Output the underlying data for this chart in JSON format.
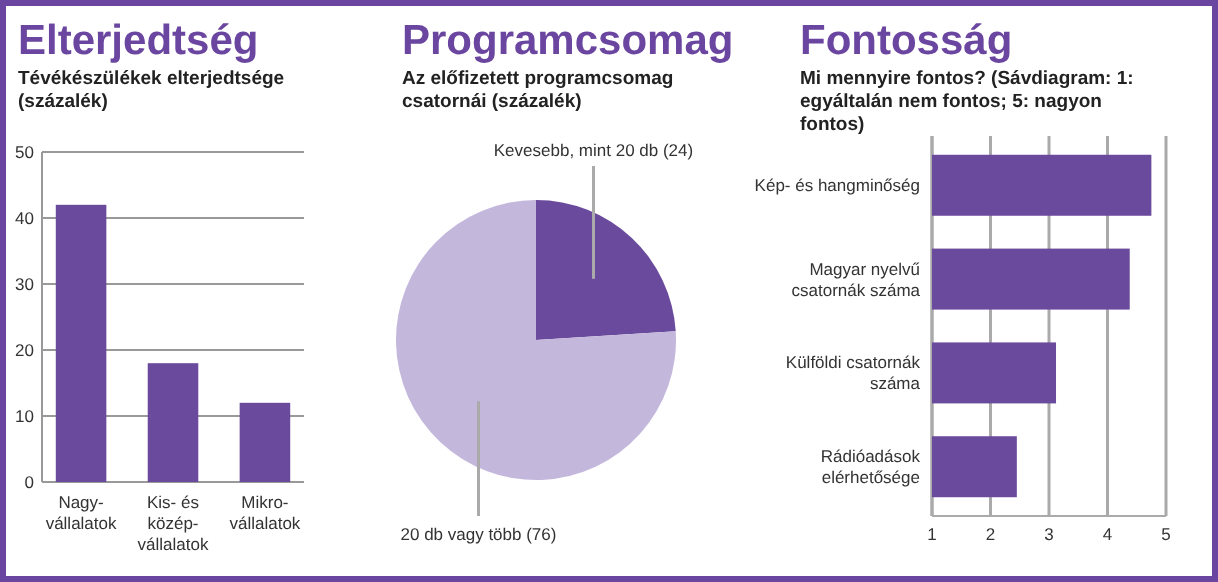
{
  "chart_data": [
    {
      "type": "bar",
      "title": "Elterjedtség",
      "subtitle": "Tévékészülékek elterjedtsége (százalék)",
      "categories": [
        "Nagy-\nvállalatok",
        "Kis- és\nközép-\nvállalatok",
        "Mikro-\nvállalatok"
      ],
      "values": [
        42,
        18,
        12
      ],
      "color": "#6a4a9c",
      "ylim": [
        0,
        50
      ],
      "yticks": [
        0,
        10,
        20,
        30,
        40,
        50
      ],
      "grid": "y"
    },
    {
      "type": "pie",
      "title": "Programcsomag",
      "subtitle": "Az előfizetett programcsomag csatornái (százalék)",
      "categories": [
        "Kevesebb, mint 20 db (24)",
        "20 db vagy több (76)"
      ],
      "values": [
        24,
        76
      ],
      "colors": [
        "#6a4a9c",
        "#c3b8dc"
      ]
    },
    {
      "type": "bar",
      "orientation": "horizontal",
      "title": "Fontosság",
      "subtitle": "Mi mennyire fontos? (Sávdiagram: 1: egyáltalán nem fontos; 5: nagyon fontos)",
      "categories": [
        "Kép- és hangminőség",
        "Magyar nyelvű\ncsatornák száma",
        "Külföldi csatornák\nszáma",
        "Rádióadások\nelérhetősége"
      ],
      "values": [
        4.75,
        4.38,
        3.12,
        2.45
      ],
      "color": "#6a4a9c",
      "xlim": [
        1,
        5
      ],
      "xticks": [
        1,
        2,
        3,
        4,
        5
      ],
      "grid": "x"
    }
  ]
}
